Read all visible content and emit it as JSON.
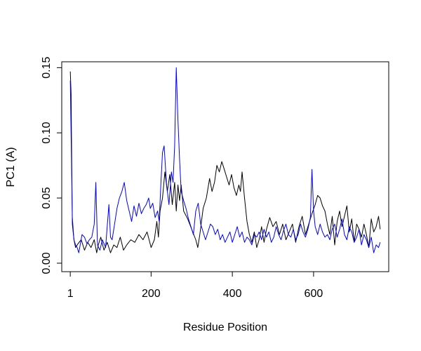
{
  "chart_data": {
    "type": "line",
    "title": "",
    "xlabel": "Residue Position",
    "ylabel": "PC1 (A)",
    "xlim": [
      -20,
      785
    ],
    "ylim": [
      -0.0065,
      0.1545
    ],
    "xticks": [
      1,
      200,
      400,
      600
    ],
    "xtick_labels": [
      "1",
      "200",
      "400",
      "600"
    ],
    "yticks": [
      0.0,
      0.05,
      0.1,
      0.15
    ],
    "ytick_labels": [
      "0.00",
      "0.05",
      "0.10",
      "0.15"
    ],
    "grid": false,
    "legend": "none",
    "series": [
      {
        "color": "#000000",
        "x": [
          1,
          3,
          6,
          10,
          14,
          20,
          28,
          36,
          44,
          52,
          60,
          66,
          70,
          76,
          84,
          92,
          100,
          108,
          116,
          124,
          132,
          140,
          150,
          160,
          170,
          180,
          190,
          200,
          208,
          214,
          218,
          222,
          228,
          234,
          240,
          246,
          252,
          258,
          262,
          266,
          270,
          274,
          280,
          290,
          300,
          310,
          315,
          320,
          328,
          336,
          344,
          350,
          356,
          362,
          368,
          374,
          380,
          386,
          392,
          398,
          404,
          410,
          416,
          420,
          424,
          430,
          436,
          442,
          448,
          454,
          460,
          466,
          472,
          478,
          484,
          492,
          500,
          508,
          516,
          524,
          532,
          540,
          548,
          556,
          564,
          572,
          580,
          588,
          596,
          604,
          610,
          616,
          622,
          628,
          634,
          640,
          646,
          652,
          658,
          664,
          670,
          676,
          682,
          688,
          694,
          700,
          706,
          712,
          718,
          724,
          730,
          736,
          742,
          748,
          754,
          760,
          764
        ],
        "y": [
          0.147,
          0.13,
          0.03,
          0.018,
          0.012,
          0.015,
          0.018,
          0.01,
          0.016,
          0.012,
          0.018,
          0.008,
          0.014,
          0.02,
          0.01,
          0.016,
          0.008,
          0.014,
          0.012,
          0.02,
          0.01,
          0.014,
          0.018,
          0.016,
          0.022,
          0.018,
          0.024,
          0.012,
          0.018,
          0.032,
          0.02,
          0.04,
          0.05,
          0.07,
          0.055,
          0.068,
          0.045,
          0.062,
          0.04,
          0.06,
          0.048,
          0.06,
          0.04,
          0.034,
          0.026,
          0.018,
          0.012,
          0.022,
          0.042,
          0.05,
          0.065,
          0.055,
          0.062,
          0.075,
          0.07,
          0.078,
          0.072,
          0.066,
          0.06,
          0.068,
          0.058,
          0.052,
          0.06,
          0.055,
          0.07,
          0.05,
          0.032,
          0.022,
          0.016,
          0.024,
          0.012,
          0.018,
          0.028,
          0.016,
          0.026,
          0.035,
          0.028,
          0.032,
          0.022,
          0.03,
          0.018,
          0.024,
          0.03,
          0.016,
          0.028,
          0.036,
          0.022,
          0.03,
          0.038,
          0.045,
          0.052,
          0.05,
          0.044,
          0.04,
          0.03,
          0.022,
          0.036,
          0.014,
          0.032,
          0.04,
          0.028,
          0.036,
          0.044,
          0.024,
          0.034,
          0.016,
          0.03,
          0.026,
          0.02,
          0.03,
          0.022,
          0.012,
          0.034,
          0.024,
          0.028,
          0.036,
          0.026
        ]
      },
      {
        "color": "#0000ff",
        "x": [
          1,
          3,
          6,
          10,
          14,
          18,
          22,
          26,
          30,
          36,
          42,
          48,
          54,
          60,
          64,
          68,
          74,
          80,
          88,
          96,
          100,
          104,
          110,
          116,
          122,
          128,
          134,
          140,
          146,
          152,
          158,
          164,
          170,
          176,
          182,
          188,
          194,
          198,
          204,
          210,
          216,
          220,
          224,
          228,
          232,
          238,
          244,
          250,
          254,
          258,
          262,
          266,
          270,
          274,
          280,
          286,
          292,
          298,
          304,
          310,
          316,
          322,
          328,
          334,
          340,
          346,
          352,
          358,
          364,
          370,
          376,
          382,
          388,
          394,
          400,
          406,
          412,
          418,
          424,
          430,
          436,
          442,
          448,
          454,
          460,
          466,
          472,
          478,
          484,
          490,
          496,
          502,
          508,
          514,
          520,
          526,
          532,
          538,
          544,
          550,
          556,
          562,
          568,
          574,
          580,
          586,
          592,
          596,
          600,
          604,
          610,
          616,
          622,
          628,
          634,
          640,
          646,
          652,
          658,
          664,
          670,
          676,
          682,
          688,
          694,
          700,
          706,
          712,
          718,
          724,
          730,
          736,
          742,
          748,
          754,
          760,
          764
        ],
        "y": [
          0.14,
          0.1,
          0.035,
          0.018,
          0.014,
          0.012,
          0.008,
          0.015,
          0.022,
          0.02,
          0.015,
          0.018,
          0.02,
          0.03,
          0.062,
          0.014,
          0.01,
          0.018,
          0.012,
          0.045,
          0.02,
          0.018,
          0.03,
          0.042,
          0.05,
          0.055,
          0.062,
          0.048,
          0.04,
          0.032,
          0.044,
          0.036,
          0.046,
          0.038,
          0.042,
          0.045,
          0.05,
          0.042,
          0.046,
          0.035,
          0.04,
          0.032,
          0.06,
          0.085,
          0.09,
          0.06,
          0.045,
          0.07,
          0.062,
          0.09,
          0.15,
          0.11,
          0.08,
          0.055,
          0.048,
          0.042,
          0.034,
          0.028,
          0.022,
          0.04,
          0.046,
          0.03,
          0.024,
          0.018,
          0.024,
          0.03,
          0.028,
          0.022,
          0.026,
          0.018,
          0.022,
          0.016,
          0.02,
          0.024,
          0.016,
          0.022,
          0.028,
          0.02,
          0.024,
          0.016,
          0.02,
          0.018,
          0.014,
          0.022,
          0.02,
          0.024,
          0.018,
          0.026,
          0.02,
          0.024,
          0.016,
          0.02,
          0.028,
          0.022,
          0.018,
          0.025,
          0.03,
          0.022,
          0.02,
          0.026,
          0.018,
          0.022,
          0.03,
          0.024,
          0.02,
          0.026,
          0.035,
          0.072,
          0.04,
          0.028,
          0.022,
          0.03,
          0.024,
          0.02,
          0.022,
          0.018,
          0.026,
          0.03,
          0.02,
          0.026,
          0.034,
          0.022,
          0.018,
          0.028,
          0.024,
          0.016,
          0.02,
          0.026,
          0.014,
          0.022,
          0.018,
          0.012,
          0.02,
          0.008,
          0.014,
          0.012,
          0.016
        ]
      }
    ]
  }
}
